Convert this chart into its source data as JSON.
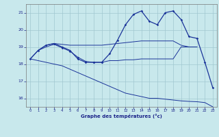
{
  "bg_color": "#c8e8ec",
  "grid_color": "#a0c8d0",
  "line_color": "#1a3399",
  "xlabel": "Graphe des températures (°c)",
  "ylim": [
    15.5,
    21.5
  ],
  "yticks": [
    16,
    17,
    18,
    19,
    20,
    21
  ],
  "xlim": [
    -0.5,
    23.5
  ],
  "xticks": [
    0,
    1,
    2,
    3,
    4,
    5,
    6,
    7,
    8,
    9,
    10,
    11,
    12,
    13,
    14,
    15,
    16,
    17,
    18,
    19,
    20,
    21,
    22,
    23
  ],
  "curve_A_x": [
    0,
    1,
    2,
    3,
    4,
    5,
    6,
    7,
    8,
    9,
    10,
    11,
    12,
    13,
    14,
    15,
    16,
    17,
    18,
    19,
    20,
    21,
    22,
    23
  ],
  "curve_A_y": [
    18.3,
    18.8,
    19.1,
    19.2,
    19.0,
    18.8,
    18.3,
    18.1,
    18.1,
    18.1,
    18.6,
    19.4,
    20.3,
    20.9,
    21.1,
    20.5,
    20.3,
    21.0,
    21.1,
    20.6,
    19.6,
    19.5,
    18.1,
    16.6
  ],
  "curve_B_x": [
    0,
    1,
    2,
    3,
    4,
    5,
    6,
    7,
    8,
    9,
    10,
    11,
    12,
    13,
    14,
    15,
    16,
    17,
    18,
    19,
    20,
    21
  ],
  "curve_B_y": [
    18.3,
    18.8,
    19.1,
    19.2,
    19.15,
    19.1,
    19.1,
    19.1,
    19.1,
    19.1,
    19.15,
    19.2,
    19.25,
    19.3,
    19.35,
    19.35,
    19.35,
    19.35,
    19.35,
    19.1,
    19.0,
    19.0
  ],
  "curve_C_x": [
    1,
    2,
    3,
    4,
    5,
    6,
    7,
    8,
    9,
    10,
    11,
    12,
    13,
    14,
    15,
    16,
    17,
    18,
    19,
    20,
    21
  ],
  "curve_C_y": [
    18.8,
    19.0,
    19.15,
    18.95,
    18.75,
    18.4,
    18.15,
    18.1,
    18.1,
    18.2,
    18.2,
    18.25,
    18.25,
    18.3,
    18.3,
    18.3,
    18.3,
    18.3,
    19.0,
    19.0,
    19.0
  ],
  "curve_D_x": [
    0,
    1,
    2,
    3,
    4,
    5,
    6,
    7,
    8,
    9,
    10,
    11,
    12,
    13,
    14,
    15,
    16,
    17,
    18,
    19,
    20,
    21,
    22,
    23
  ],
  "curve_D_y": [
    18.3,
    18.2,
    18.1,
    18.0,
    17.9,
    17.7,
    17.5,
    17.3,
    17.1,
    16.9,
    16.7,
    16.5,
    16.3,
    16.2,
    16.1,
    16.0,
    16.0,
    15.95,
    15.9,
    15.85,
    15.82,
    15.8,
    15.75,
    15.5
  ],
  "markers_A_x": [
    0,
    1,
    2,
    3,
    4,
    5,
    6,
    7,
    8,
    9,
    10,
    11,
    12,
    13,
    14,
    15,
    16,
    17,
    18,
    19,
    20,
    21,
    22,
    23
  ],
  "markers_A_y": [
    18.3,
    18.8,
    19.1,
    19.2,
    19.0,
    18.8,
    18.3,
    18.1,
    18.1,
    18.1,
    18.6,
    19.4,
    20.3,
    20.9,
    21.1,
    20.5,
    20.3,
    21.0,
    21.1,
    20.6,
    19.6,
    19.5,
    18.1,
    16.6
  ],
  "markers_C_x": [
    4,
    5,
    6,
    7,
    8,
    9
  ],
  "markers_C_y": [
    18.95,
    18.75,
    18.4,
    18.15,
    18.1,
    18.1
  ]
}
